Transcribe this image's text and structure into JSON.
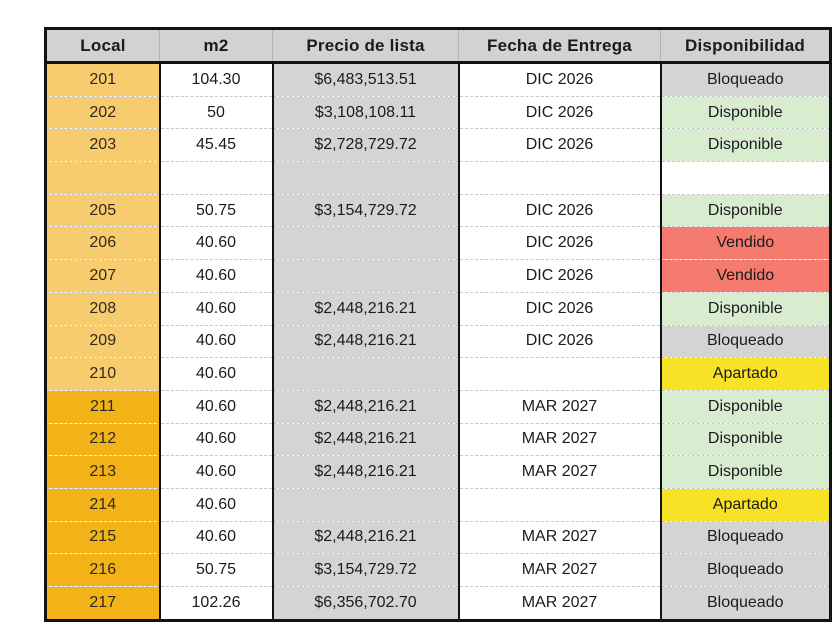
{
  "colors": {
    "page_bg": "#ffffff",
    "border_black": "#121212",
    "header_bg": "#d2d2d2",
    "header_divider": "#b5b5b5",
    "row_divider": "#c8c8c8",
    "price_bg": "#d4d4d4",
    "cell_white": "#ffffff",
    "local_light": "#f7cc6e",
    "local_dark": "#f2b319",
    "local_text": "#33291a",
    "text_dark": "#1b1b1b",
    "status_gray": "#d4d4d4",
    "status_green": "#d8ecd0",
    "status_red": "#f47b6d",
    "status_yellow": "#f7e226"
  },
  "table": {
    "headers": [
      {
        "key": "local",
        "label": "Local"
      },
      {
        "key": "m2",
        "label": "m2"
      },
      {
        "key": "precio",
        "label": "Precio de lista"
      },
      {
        "key": "fecha",
        "label": "Fecha de Entrega"
      },
      {
        "key": "estado",
        "label": "Disponibilidad"
      }
    ],
    "rows": [
      {
        "local": "201",
        "m2": "104.30",
        "precio": "$6,483,513.51",
        "fecha": "DIC 2026",
        "estado": "Bloqueado",
        "estado_color": "gray",
        "local_shade": "light"
      },
      {
        "local": "202",
        "m2": "50",
        "precio": "$3,108,108.11",
        "fecha": "DIC 2026",
        "estado": "Disponible",
        "estado_color": "green",
        "local_shade": "light"
      },
      {
        "local": "203",
        "m2": "45.45",
        "precio": "$2,728,729.72",
        "fecha": "DIC 2026",
        "estado": "Disponible",
        "estado_color": "green",
        "local_shade": "light"
      },
      {
        "local": "",
        "m2": "",
        "precio": "",
        "fecha": "",
        "estado": "",
        "estado_color": "white",
        "local_shade": "light"
      },
      {
        "local": "205",
        "m2": "50.75",
        "precio": "$3,154,729.72",
        "fecha": "DIC 2026",
        "estado": "Disponible",
        "estado_color": "green",
        "local_shade": "light"
      },
      {
        "local": "206",
        "m2": "40.60",
        "precio": "",
        "fecha": "DIC 2026",
        "estado": "Vendido",
        "estado_color": "red",
        "local_shade": "light"
      },
      {
        "local": "207",
        "m2": "40.60",
        "precio": "",
        "fecha": "DIC 2026",
        "estado": "Vendido",
        "estado_color": "red",
        "local_shade": "light"
      },
      {
        "local": "208",
        "m2": "40.60",
        "precio": "$2,448,216.21",
        "fecha": "DIC 2026",
        "estado": "Disponible",
        "estado_color": "green",
        "local_shade": "light"
      },
      {
        "local": "209",
        "m2": "40.60",
        "precio": "$2,448,216.21",
        "fecha": "DIC 2026",
        "estado": "Bloqueado",
        "estado_color": "gray",
        "local_shade": "light"
      },
      {
        "local": "210",
        "m2": "40.60",
        "precio": "",
        "fecha": "",
        "estado": "Apartado",
        "estado_color": "yellow",
        "local_shade": "light"
      },
      {
        "local": "211",
        "m2": "40.60",
        "precio": "$2,448,216.21",
        "fecha": "MAR 2027",
        "estado": "Disponible",
        "estado_color": "green",
        "local_shade": "dark"
      },
      {
        "local": "212",
        "m2": "40.60",
        "precio": "$2,448,216.21",
        "fecha": "MAR 2027",
        "estado": "Disponible",
        "estado_color": "green",
        "local_shade": "dark"
      },
      {
        "local": "213",
        "m2": "40.60",
        "precio": "$2,448,216.21",
        "fecha": "MAR 2027",
        "estado": "Disponible",
        "estado_color": "green",
        "local_shade": "dark"
      },
      {
        "local": "214",
        "m2": "40.60",
        "precio": "",
        "fecha": "",
        "estado": "Apartado",
        "estado_color": "yellow",
        "local_shade": "dark"
      },
      {
        "local": "215",
        "m2": "40.60",
        "precio": "$2,448,216.21",
        "fecha": "MAR 2027",
        "estado": "Bloqueado",
        "estado_color": "gray",
        "local_shade": "dark"
      },
      {
        "local": "216",
        "m2": "50.75",
        "precio": "$3,154,729.72",
        "fecha": "MAR 2027",
        "estado": "Bloqueado",
        "estado_color": "gray",
        "local_shade": "dark"
      },
      {
        "local": "217",
        "m2": "102.26",
        "precio": "$6,356,702.70",
        "fecha": "MAR 2027",
        "estado": "Bloqueado",
        "estado_color": "gray",
        "local_shade": "dark"
      }
    ]
  }
}
